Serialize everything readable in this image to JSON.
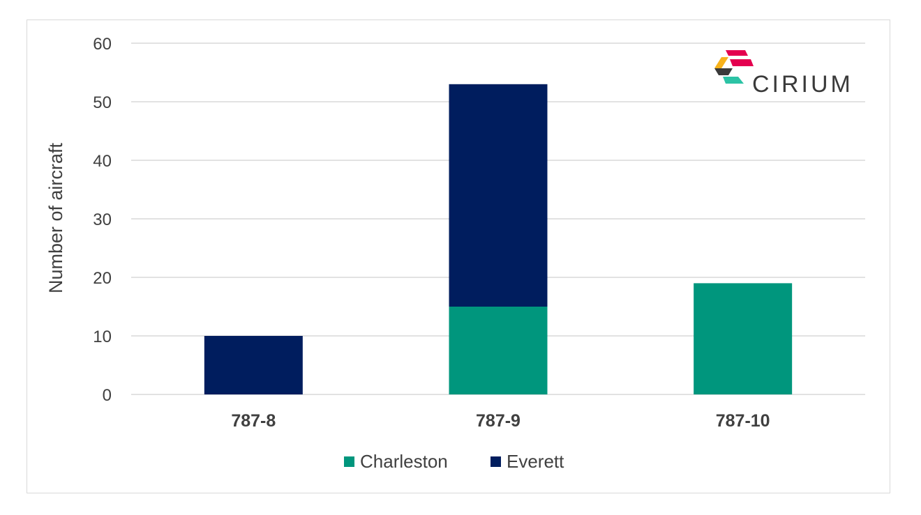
{
  "logo": {
    "text": "CIRIUM"
  },
  "colors": {
    "Charleston": "#00967d",
    "Everett": "#001d5e",
    "grid": "#d9d9d9",
    "text": "#404040"
  },
  "chart_data": {
    "type": "bar",
    "stacked": true,
    "categories": [
      "787-8",
      "787-9",
      "787-10"
    ],
    "series": [
      {
        "name": "Charleston",
        "values": [
          0,
          15,
          19
        ]
      },
      {
        "name": "Everett",
        "values": [
          10,
          38,
          0
        ]
      }
    ],
    "title": "",
    "xlabel": "",
    "ylabel": "Number of aircraft",
    "ylim": [
      0,
      60
    ],
    "yticks": [
      0,
      10,
      20,
      30,
      40,
      50,
      60
    ],
    "grid": true,
    "legend": "bottom"
  }
}
